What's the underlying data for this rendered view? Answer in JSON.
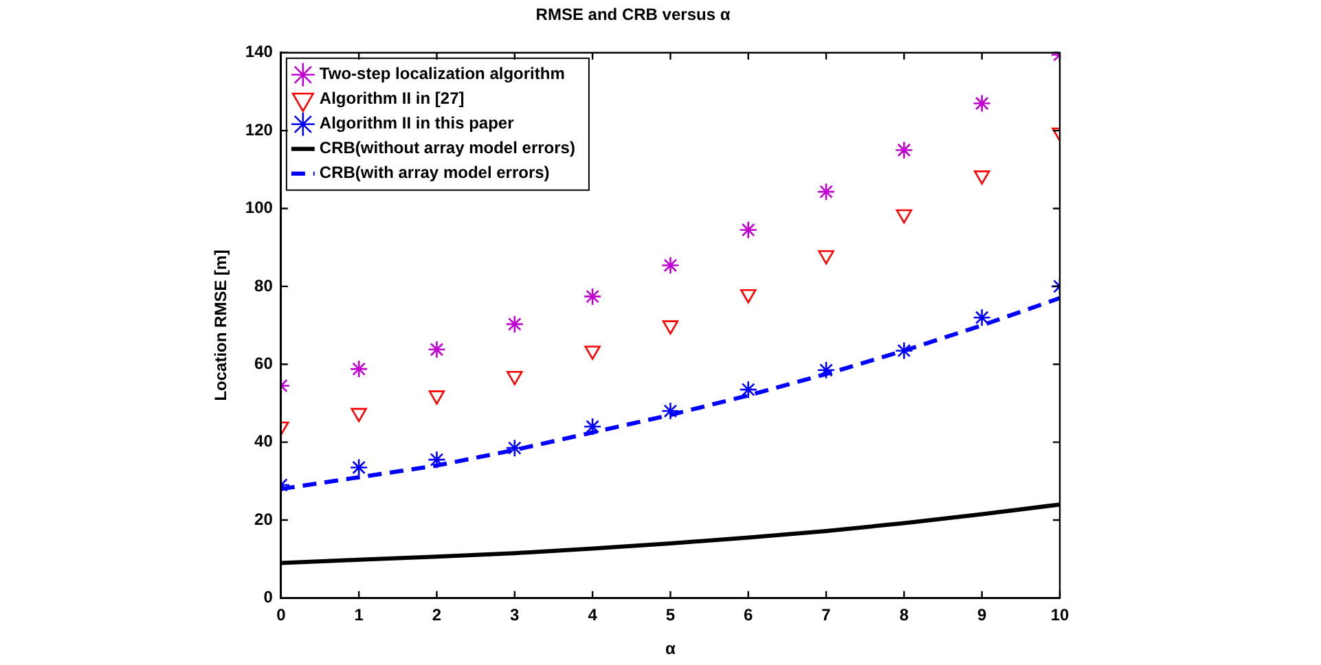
{
  "chart_data": {
    "type": "scatter",
    "title": "RMSE and CRB versus α",
    "xlabel": "α",
    "ylabel": "Location RMSE [m]",
    "x": [
      0,
      1,
      2,
      3,
      4,
      5,
      6,
      7,
      8,
      9,
      10
    ],
    "series": [
      {
        "name": "Two-step localization algorithm",
        "color": "#c000d0",
        "marker": "cross",
        "values": [
          54.5,
          58.8,
          63.8,
          70.3,
          77.4,
          85.4,
          94.5,
          104.3,
          115,
          127,
          139.5
        ]
      },
      {
        "name": "Algorithm II in [27]",
        "color": "#ff0000",
        "marker": "triangle",
        "values": [
          44,
          47.5,
          52,
          57,
          63.5,
          70,
          78,
          88,
          98.5,
          108.5,
          119.5
        ]
      },
      {
        "name": "Algorithm II in this paper",
        "color": "#0000ff",
        "marker": "cross",
        "values": [
          29,
          33.5,
          35.5,
          38.5,
          44,
          48,
          53.5,
          58.5,
          63.5,
          72,
          80
        ]
      },
      {
        "name": "CRB(without array model errors)",
        "color": "#000000",
        "type": "line",
        "marker": "none",
        "line_style": "solid",
        "values": [
          9,
          9.8,
          10.6,
          11.5,
          12.7,
          14,
          15.5,
          17.2,
          19.2,
          21.5,
          24
        ]
      },
      {
        "name": "CRB(with array model errors)",
        "color": "#0000ff",
        "type": "line",
        "marker": "none",
        "line_style": "dashed",
        "values": [
          28,
          31,
          34,
          38,
          42.5,
          47,
          52,
          57.5,
          63.5,
          70,
          77
        ]
      }
    ],
    "xlim": [
      0,
      10
    ],
    "xticks": [
      0,
      1,
      2,
      3,
      4,
      5,
      6,
      7,
      8,
      9,
      10
    ],
    "ylim": [
      0,
      140
    ],
    "yticks": [
      0,
      20,
      40,
      60,
      80,
      100,
      120,
      140
    ],
    "grid": false,
    "legend": "top left"
  }
}
